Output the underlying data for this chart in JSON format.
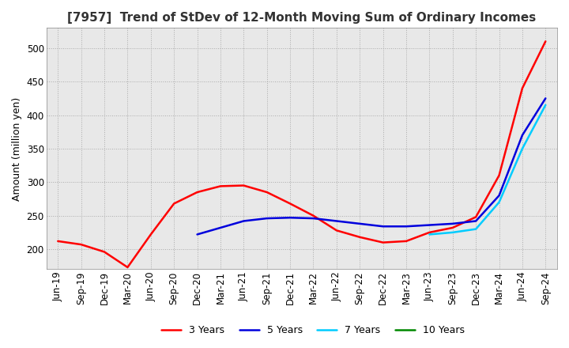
{
  "title": "[7957]  Trend of StDev of 12-Month Moving Sum of Ordinary Incomes",
  "ylabel": "Amount (million yen)",
  "background_color": "#ffffff",
  "grid_color": "#aaaaaa",
  "x_labels": [
    "Jun-19",
    "Sep-19",
    "Dec-19",
    "Mar-20",
    "Jun-20",
    "Sep-20",
    "Dec-20",
    "Mar-21",
    "Jun-21",
    "Sep-21",
    "Dec-21",
    "Mar-22",
    "Jun-22",
    "Sep-22",
    "Dec-22",
    "Mar-23",
    "Jun-23",
    "Sep-23",
    "Dec-23",
    "Mar-24",
    "Jun-24",
    "Sep-24"
  ],
  "series": {
    "3 Years": {
      "color": "#ff0000",
      "values": [
        212,
        207,
        196,
        173,
        222,
        268,
        285,
        294,
        295,
        285,
        268,
        250,
        228,
        218,
        210,
        212,
        225,
        232,
        248,
        310,
        440,
        510
      ]
    },
    "5 Years": {
      "color": "#0000dd",
      "values": [
        null,
        null,
        null,
        null,
        null,
        null,
        222,
        232,
        242,
        246,
        247,
        246,
        242,
        238,
        234,
        234,
        236,
        238,
        242,
        280,
        370,
        425
      ]
    },
    "7 Years": {
      "color": "#00ccff",
      "values": [
        null,
        null,
        null,
        null,
        null,
        null,
        null,
        null,
        null,
        null,
        null,
        null,
        null,
        null,
        null,
        null,
        222,
        225,
        230,
        270,
        350,
        415
      ]
    },
    "10 Years": {
      "color": "#008800",
      "values": [
        null,
        null,
        null,
        null,
        null,
        null,
        null,
        null,
        null,
        null,
        null,
        null,
        null,
        null,
        null,
        null,
        null,
        null,
        null,
        null,
        null,
        null
      ]
    }
  },
  "ylim": [
    170,
    530
  ],
  "yticks": [
    200,
    250,
    300,
    350,
    400,
    450,
    500
  ],
  "title_fontsize": 11,
  "axis_fontsize": 9,
  "tick_fontsize": 8.5
}
